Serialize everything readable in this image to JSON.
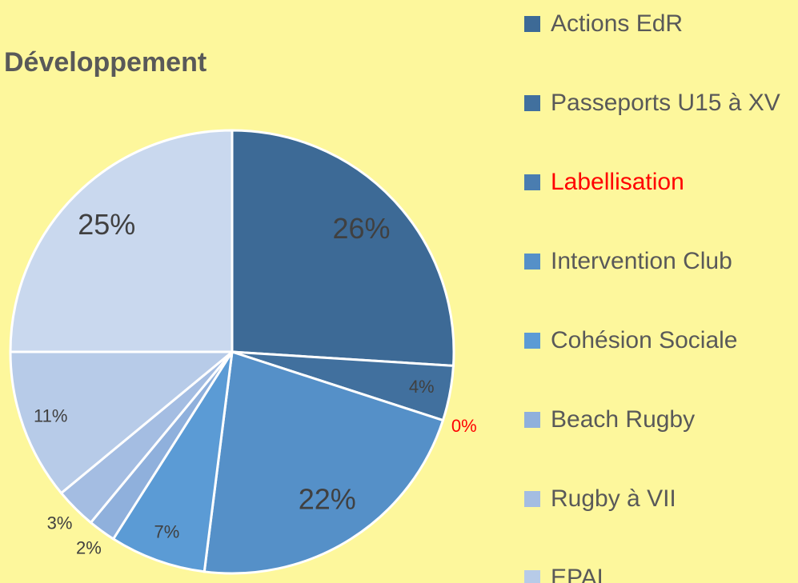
{
  "chart_data": {
    "type": "pie",
    "title": "Développement",
    "categories": [
      "Actions EdR",
      "Passeports U15 à XV",
      "Labellisation",
      "Intervention Club",
      "Cohésion Sociale",
      "Beach Rugby",
      "Rugby à VII",
      "EPAL",
      null
    ],
    "values": [
      26,
      4,
      0,
      22,
      7,
      2,
      3,
      11,
      25
    ],
    "value_labels": [
      "26%",
      "4%",
      "0%",
      "22%",
      "7%",
      "2%",
      "3%",
      "11%",
      "25%"
    ],
    "colors": [
      "#3d6a96",
      "#41709e",
      "#4a7db0",
      "#5590c8",
      "#5b9bd5",
      "#8fb0dc",
      "#a4bde2",
      "#b7cbe8",
      "#c9d8ee"
    ],
    "text_colors": [
      "#404040",
      "#404040",
      "#ff0000",
      "#404040",
      "#404040",
      "#404040",
      "#404040",
      "#404040",
      "#404040"
    ],
    "legend": "right"
  }
}
